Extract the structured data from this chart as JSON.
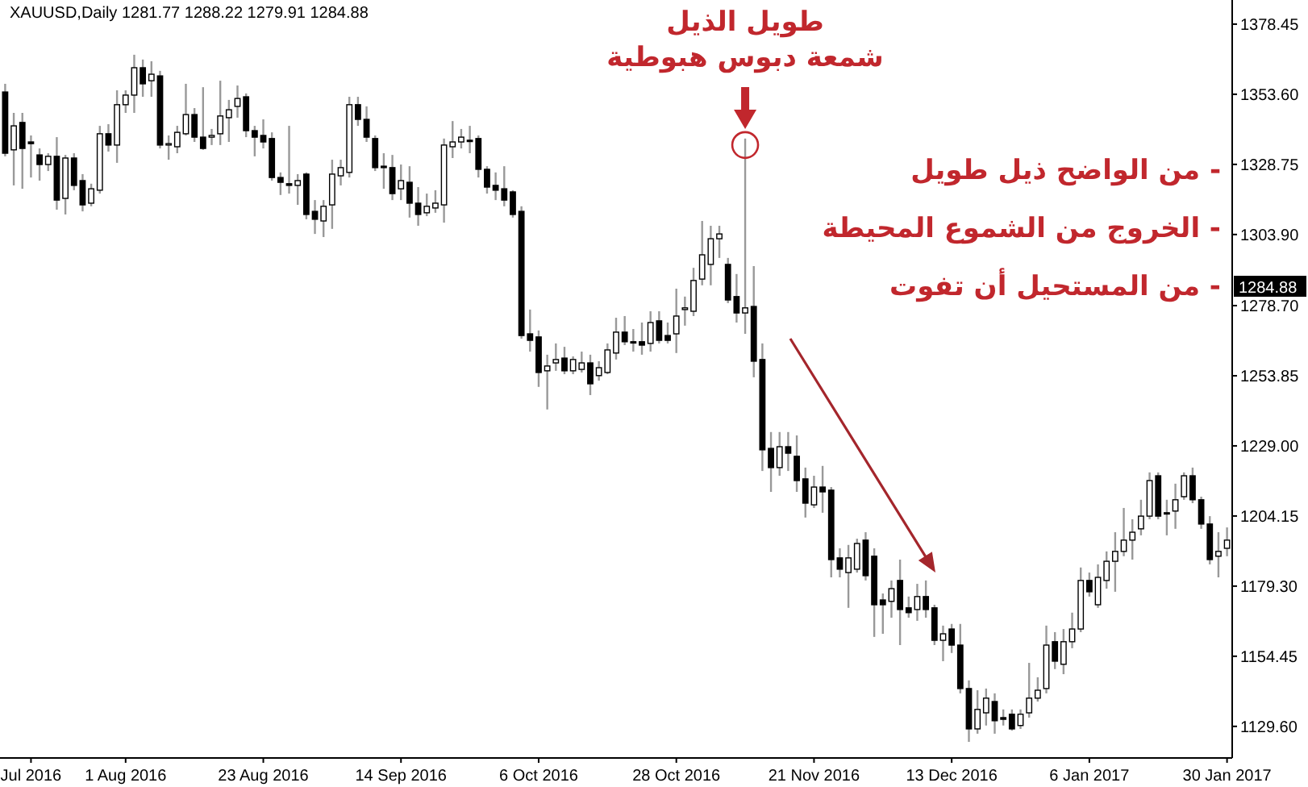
{
  "chart_data": {
    "type": "candlestick",
    "title": "XAUUSD,Daily 1281.77 1288.22 1279.91 1284.88",
    "categories": [
      null,
      null,
      null,
      "Jul 2016",
      null,
      null,
      null,
      null,
      null,
      null,
      null,
      null,
      null,
      null,
      "1 Aug 2016",
      null,
      null,
      null,
      null,
      null,
      null,
      null,
      null,
      null,
      null,
      null,
      null,
      null,
      null,
      null,
      "23 Aug 2016",
      null,
      null,
      null,
      null,
      null,
      null,
      null,
      null,
      null,
      null,
      null,
      null,
      null,
      null,
      null,
      "14 Sep 2016",
      null,
      null,
      null,
      null,
      null,
      null,
      null,
      null,
      null,
      null,
      null,
      null,
      null,
      null,
      null,
      "6 Oct 2016",
      null,
      null,
      null,
      null,
      null,
      null,
      null,
      null,
      null,
      null,
      null,
      null,
      null,
      null,
      null,
      "28 Oct 2016",
      null,
      null,
      null,
      null,
      null,
      null,
      null,
      null,
      null,
      null,
      null,
      null,
      null,
      null,
      null,
      "21 Nov 2016",
      null,
      null,
      null,
      null,
      null,
      null,
      null,
      null,
      null,
      null,
      null,
      null,
      null,
      null,
      null,
      "13 Dec 2016",
      null,
      null,
      null,
      null,
      null,
      null,
      null,
      null,
      null,
      null,
      null,
      null,
      null,
      null,
      null,
      "6 Jan 2017",
      null,
      null,
      null,
      null,
      null,
      null,
      null,
      null,
      null,
      null,
      null,
      null,
      null,
      null,
      null,
      "30 Jan 2017"
    ],
    "ohlc": [
      [
        1354.4,
        1357.3,
        1331.6,
        1332.7
      ],
      [
        1333.9,
        1347.0,
        1321.3,
        1342.4
      ],
      [
        1343.6,
        1347.0,
        1320.1,
        1334.4
      ],
      [
        1336.7,
        1339.0,
        1324.1,
        1336.1
      ],
      [
        1332.1,
        1334.4,
        1323.0,
        1328.7
      ],
      [
        1328.7,
        1332.7,
        1326.4,
        1331.6
      ],
      [
        1331.6,
        1338.4,
        1312.7,
        1316.1
      ],
      [
        1316.7,
        1332.1,
        1311.0,
        1331.0
      ],
      [
        1331.0,
        1332.7,
        1319.6,
        1321.3
      ],
      [
        1323.0,
        1325.3,
        1312.1,
        1314.4
      ],
      [
        1315.0,
        1321.9,
        1313.9,
        1320.1
      ],
      [
        1319.6,
        1342.4,
        1318.4,
        1339.6
      ],
      [
        1339.6,
        1343.0,
        1333.3,
        1335.6
      ],
      [
        1335.6,
        1355.0,
        1329.3,
        1349.9
      ],
      [
        1349.9,
        1355.0,
        1347.0,
        1353.3
      ],
      [
        1353.3,
        1367.6,
        1347.0,
        1363.0
      ],
      [
        1363.0,
        1365.9,
        1352.7,
        1357.3
      ],
      [
        1358.4,
        1365.3,
        1352.7,
        1360.7
      ],
      [
        1360.1,
        1361.9,
        1334.4,
        1335.6
      ],
      [
        1335.6,
        1339.0,
        1330.4,
        1336.1
      ],
      [
        1335.0,
        1342.4,
        1332.7,
        1340.1
      ],
      [
        1339.6,
        1357.3,
        1339.0,
        1346.4
      ],
      [
        1346.4,
        1348.7,
        1336.7,
        1338.4
      ],
      [
        1338.4,
        1356.1,
        1333.9,
        1334.4
      ],
      [
        1338.4,
        1341.3,
        1335.6,
        1339.0
      ],
      [
        1339.6,
        1358.4,
        1335.6,
        1345.9
      ],
      [
        1345.3,
        1351.6,
        1336.7,
        1348.1
      ],
      [
        1349.3,
        1356.7,
        1345.3,
        1352.1
      ],
      [
        1352.7,
        1353.9,
        1338.4,
        1340.7
      ],
      [
        1340.7,
        1342.4,
        1331.6,
        1338.4
      ],
      [
        1339.0,
        1344.7,
        1334.4,
        1336.7
      ],
      [
        1337.9,
        1340.1,
        1323.0,
        1324.1
      ],
      [
        1324.1,
        1325.9,
        1317.9,
        1322.4
      ],
      [
        1321.9,
        1342.4,
        1318.4,
        1321.3
      ],
      [
        1321.3,
        1325.3,
        1314.4,
        1323.0
      ],
      [
        1325.3,
        1325.9,
        1309.3,
        1311.0
      ],
      [
        1312.1,
        1316.1,
        1304.1,
        1309.3
      ],
      [
        1308.7,
        1316.1,
        1303.0,
        1313.9
      ],
      [
        1314.4,
        1330.4,
        1305.9,
        1325.3
      ],
      [
        1324.7,
        1330.4,
        1321.3,
        1327.6
      ],
      [
        1325.9,
        1352.7,
        1324.1,
        1349.9
      ],
      [
        1349.9,
        1352.7,
        1342.4,
        1344.7
      ],
      [
        1344.7,
        1349.3,
        1336.7,
        1338.4
      ],
      [
        1337.9,
        1339.0,
        1326.4,
        1327.6
      ],
      [
        1328.1,
        1332.7,
        1320.1,
        1327.6
      ],
      [
        1327.6,
        1332.1,
        1316.1,
        1318.4
      ],
      [
        1320.1,
        1328.7,
        1316.1,
        1323.0
      ],
      [
        1322.4,
        1328.1,
        1309.9,
        1315.0
      ],
      [
        1315.0,
        1320.7,
        1307.0,
        1311.0
      ],
      [
        1311.6,
        1318.4,
        1310.4,
        1313.9
      ],
      [
        1313.3,
        1319.6,
        1311.6,
        1315.0
      ],
      [
        1314.4,
        1337.9,
        1308.1,
        1335.6
      ],
      [
        1335.0,
        1344.1,
        1331.0,
        1336.7
      ],
      [
        1336.7,
        1341.3,
        1334.4,
        1338.4
      ],
      [
        1337.3,
        1342.4,
        1332.7,
        1337.0
      ],
      [
        1337.9,
        1339.0,
        1324.1,
        1327.0
      ],
      [
        1327.0,
        1328.1,
        1318.4,
        1320.7
      ],
      [
        1321.3,
        1325.9,
        1316.1,
        1319.6
      ],
      [
        1320.1,
        1328.1,
        1313.9,
        1316.1
      ],
      [
        1319.0,
        1319.6,
        1309.9,
        1311.0
      ],
      [
        1312.1,
        1313.9,
        1267.0,
        1268.1
      ],
      [
        1268.7,
        1277.3,
        1262.4,
        1266.4
      ],
      [
        1267.6,
        1269.9,
        1249.9,
        1255.0
      ],
      [
        1255.6,
        1261.3,
        1241.9,
        1257.3
      ],
      [
        1258.4,
        1265.3,
        1255.6,
        1259.6
      ],
      [
        1260.1,
        1264.1,
        1254.4,
        1255.6
      ],
      [
        1255.6,
        1260.7,
        1254.4,
        1259.6
      ],
      [
        1256.1,
        1262.4,
        1255.0,
        1258.4
      ],
      [
        1258.4,
        1261.3,
        1247.0,
        1251.0
      ],
      [
        1253.9,
        1259.0,
        1252.1,
        1256.7
      ],
      [
        1255.0,
        1265.3,
        1254.4,
        1263.0
      ],
      [
        1261.9,
        1274.4,
        1259.6,
        1269.3
      ],
      [
        1269.3,
        1275.0,
        1264.7,
        1265.9
      ],
      [
        1265.9,
        1270.4,
        1262.4,
        1265.6
      ],
      [
        1265.9,
        1272.7,
        1261.3,
        1264.7
      ],
      [
        1265.3,
        1276.7,
        1262.4,
        1272.7
      ],
      [
        1273.3,
        1276.7,
        1265.3,
        1266.4
      ],
      [
        1268.1,
        1272.7,
        1265.3,
        1266.4
      ],
      [
        1268.7,
        1284.7,
        1261.9,
        1275.0
      ],
      [
        1277.3,
        1281.9,
        1271.6,
        1277.9
      ],
      [
        1276.7,
        1292.1,
        1275.0,
        1287.6
      ],
      [
        1288.1,
        1308.7,
        1285.9,
        1296.7
      ],
      [
        1293.3,
        1307.0,
        1285.9,
        1302.4
      ],
      [
        1302.4,
        1307.0,
        1295.6,
        1304.1
      ],
      [
        1293.3,
        1295.6,
        1279.6,
        1280.7
      ],
      [
        1281.9,
        1289.9,
        1272.7,
        1276.1
      ],
      [
        1276.1,
        1337.9,
        1268.7,
        1277.9
      ],
      [
        1278.4,
        1292.7,
        1253.3,
        1259.0
      ],
      [
        1259.6,
        1265.3,
        1220.1,
        1227.6
      ],
      [
        1228.1,
        1233.9,
        1212.7,
        1221.3
      ],
      [
        1221.3,
        1233.9,
        1218.4,
        1228.7
      ],
      [
        1228.7,
        1233.9,
        1220.1,
        1226.4
      ],
      [
        1225.3,
        1232.7,
        1212.7,
        1216.7
      ],
      [
        1217.3,
        1221.3,
        1203.6,
        1208.7
      ],
      [
        1208.1,
        1218.4,
        1207.0,
        1214.4
      ],
      [
        1214.4,
        1221.9,
        1205.3,
        1212.7
      ],
      [
        1213.3,
        1214.4,
        1182.4,
        1188.7
      ],
      [
        1189.3,
        1192.7,
        1182.4,
        1185.3
      ],
      [
        1184.1,
        1193.9,
        1171.6,
        1189.3
      ],
      [
        1185.3,
        1196.1,
        1184.1,
        1194.4
      ],
      [
        1195.6,
        1198.4,
        1181.3,
        1183.0
      ],
      [
        1189.9,
        1192.7,
        1161.3,
        1172.7
      ],
      [
        1174.4,
        1176.7,
        1162.4,
        1172.7
      ],
      [
        1173.9,
        1181.3,
        1168.1,
        1178.4
      ],
      [
        1181.3,
        1188.7,
        1158.4,
        1171.0
      ],
      [
        1171.6,
        1175.6,
        1168.1,
        1169.9
      ],
      [
        1171.0,
        1180.1,
        1167.0,
        1175.6
      ],
      [
        1175.6,
        1181.3,
        1168.1,
        1171.0
      ],
      [
        1171.6,
        1172.7,
        1158.4,
        1160.1
      ],
      [
        1160.1,
        1165.3,
        1152.7,
        1162.4
      ],
      [
        1164.1,
        1165.9,
        1155.6,
        1158.4
      ],
      [
        1158.4,
        1165.9,
        1141.3,
        1143.0
      ],
      [
        1143.0,
        1145.9,
        1124.1,
        1128.7
      ],
      [
        1128.7,
        1142.4,
        1127.0,
        1135.6
      ],
      [
        1134.4,
        1143.0,
        1129.9,
        1139.6
      ],
      [
        1138.4,
        1141.3,
        1127.0,
        1131.6
      ],
      [
        1132.7,
        1135.6,
        1129.9,
        1132.1
      ],
      [
        1133.9,
        1135.6,
        1128.1,
        1128.7
      ],
      [
        1129.9,
        1135.6,
        1128.7,
        1133.9
      ],
      [
        1134.4,
        1152.1,
        1132.7,
        1139.6
      ],
      [
        1139.6,
        1147.0,
        1138.4,
        1142.4
      ],
      [
        1143.0,
        1165.3,
        1141.3,
        1158.4
      ],
      [
        1159.6,
        1163.0,
        1149.9,
        1152.7
      ],
      [
        1151.6,
        1164.1,
        1148.1,
        1159.6
      ],
      [
        1159.6,
        1169.9,
        1157.3,
        1164.1
      ],
      [
        1164.1,
        1185.9,
        1163.0,
        1181.3
      ],
      [
        1181.3,
        1184.1,
        1175.6,
        1177.3
      ],
      [
        1172.7,
        1187.0,
        1171.6,
        1182.4
      ],
      [
        1181.3,
        1191.6,
        1178.4,
        1188.1
      ],
      [
        1188.1,
        1198.4,
        1177.3,
        1191.6
      ],
      [
        1191.6,
        1207.0,
        1189.9,
        1195.6
      ],
      [
        1195.6,
        1203.0,
        1188.7,
        1198.4
      ],
      [
        1199.6,
        1209.9,
        1197.3,
        1204.1
      ],
      [
        1204.1,
        1219.6,
        1203.0,
        1216.7
      ],
      [
        1218.4,
        1219.6,
        1203.0,
        1204.1
      ],
      [
        1205.3,
        1209.9,
        1197.3,
        1205.0
      ],
      [
        1205.9,
        1215.6,
        1199.6,
        1209.9
      ],
      [
        1211.0,
        1219.6,
        1209.9,
        1218.4
      ],
      [
        1218.4,
        1221.3,
        1208.7,
        1209.9
      ],
      [
        1209.9,
        1211.0,
        1199.6,
        1201.3
      ],
      [
        1201.3,
        1204.1,
        1187.0,
        1188.7
      ],
      [
        1189.9,
        1198.4,
        1182.4,
        1191.6
      ],
      [
        1192.7,
        1200.1,
        1189.9,
        1195.6
      ]
    ],
    "color": "#000000",
    "ylim": [
      1118.4,
      1387.0
    ],
    "yticks": [
      1378.45,
      {
        "value": 1353.6,
        "label": "1353.60"
      },
      1328.75,
      {
        "value": 1303.9,
        "label": "1303.90"
      },
      {
        "value": 1278.7,
        "label": "1278.70"
      },
      1253.85,
      {
        "value": 1229,
        "label": "1229.00"
      },
      1204.15,
      {
        "value": 1179.3,
        "label": "1179.30"
      },
      1154.45,
      {
        "value": 1129.6,
        "label": "1129.60"
      }
    ],
    "annotations": [
      "طويل الذيل",
      "شمعة دبوس هبوطية",
      "- من الواضح ذيل طويل",
      "- الخروج من الشموع المحيطة",
      "- من المستحيل أن تفوت",
      "1284.88"
    ]
  }
}
